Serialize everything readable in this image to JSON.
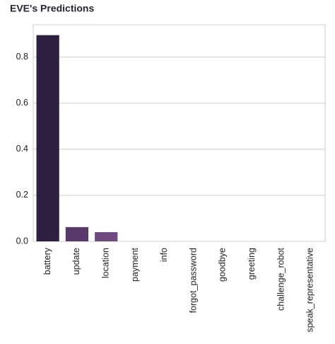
{
  "chart_data": {
    "type": "bar",
    "title": "EVE's Predictions",
    "categories": [
      "battery",
      "update",
      "location",
      "payment",
      "info",
      "forgot_password",
      "goodbye",
      "greeting",
      "challenge_robot",
      "speak_representative"
    ],
    "values": [
      0.895,
      0.062,
      0.04,
      0,
      0,
      0,
      0,
      0,
      0,
      0
    ],
    "colors": [
      "#2e1f40",
      "#583969",
      "#6e4a7e",
      "#7e5b8c",
      "#8c6a98",
      "#9b7aa5",
      "#a98ab1",
      "#b79bbe",
      "#c5adca",
      "#d3bfd7"
    ],
    "ylim": [
      0,
      0.94
    ],
    "yticks": [
      0.0,
      0.2,
      0.4,
      0.6,
      0.8
    ],
    "grid": true
  }
}
